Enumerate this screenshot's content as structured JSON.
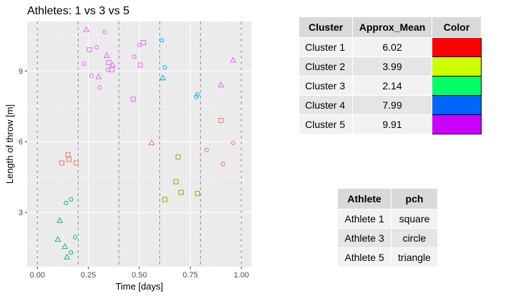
{
  "chart_data": {
    "type": "scatter",
    "title": "Athletes: 1 vs 3 vs 5",
    "xlabel": "Time [days]",
    "ylabel": "Length of throw [m]",
    "xlim": [
      -0.05,
      1.05
    ],
    "ylim": [
      0.7,
      11.1
    ],
    "x_ticks": [
      0.0,
      0.25,
      0.5,
      0.75,
      1.0
    ],
    "x_tick_labels": [
      "0.00",
      "0.25",
      "0.50",
      "0.75",
      "1.00"
    ],
    "y_ticks": [
      3,
      6,
      9
    ],
    "y_tick_labels": [
      "3",
      "6",
      "9"
    ],
    "vlines": [
      0.0,
      0.2,
      0.4,
      0.6,
      0.8,
      1.0
    ],
    "grid": true,
    "legend": "none",
    "points": [
      {
        "x": 0.12,
        "y": 5.1,
        "shape": "square",
        "cluster": 1
      },
      {
        "x": 0.15,
        "y": 5.45,
        "shape": "square",
        "cluster": 1
      },
      {
        "x": 0.155,
        "y": 5.25,
        "shape": "square",
        "cluster": 1
      },
      {
        "x": 0.19,
        "y": 5.1,
        "shape": "square",
        "cluster": 1
      },
      {
        "x": 0.56,
        "y": 5.95,
        "shape": "triangle",
        "cluster": 1
      },
      {
        "x": 0.83,
        "y": 5.65,
        "shape": "circle",
        "cluster": 1
      },
      {
        "x": 0.9,
        "y": 6.9,
        "shape": "square",
        "cluster": 1
      },
      {
        "x": 0.91,
        "y": 5.05,
        "shape": "circle",
        "cluster": 1
      },
      {
        "x": 0.96,
        "y": 5.95,
        "shape": "circle",
        "cluster": 1
      },
      {
        "x": 0.69,
        "y": 5.35,
        "shape": "square",
        "cluster": 2
      },
      {
        "x": 0.68,
        "y": 4.3,
        "shape": "square",
        "cluster": 2
      },
      {
        "x": 0.705,
        "y": 3.85,
        "shape": "square",
        "cluster": 2
      },
      {
        "x": 0.625,
        "y": 3.55,
        "shape": "square",
        "cluster": 2
      },
      {
        "x": 0.785,
        "y": 3.8,
        "shape": "square",
        "cluster": 2
      },
      {
        "x": 0.11,
        "y": 2.65,
        "shape": "triangle",
        "cluster": 3
      },
      {
        "x": 0.1,
        "y": 1.85,
        "shape": "triangle",
        "cluster": 3
      },
      {
        "x": 0.135,
        "y": 1.55,
        "shape": "triangle",
        "cluster": 3
      },
      {
        "x": 0.145,
        "y": 1.1,
        "shape": "triangle",
        "cluster": 3
      },
      {
        "x": 0.165,
        "y": 1.3,
        "shape": "circle",
        "cluster": 3
      },
      {
        "x": 0.185,
        "y": 1.95,
        "shape": "circle",
        "cluster": 3
      },
      {
        "x": 0.14,
        "y": 3.4,
        "shape": "circle",
        "cluster": 3
      },
      {
        "x": 0.165,
        "y": 3.55,
        "shape": "circle",
        "cluster": 3
      },
      {
        "x": 0.61,
        "y": 10.3,
        "shape": "circle",
        "cluster": 4
      },
      {
        "x": 0.625,
        "y": 9.15,
        "shape": "circle",
        "cluster": 4
      },
      {
        "x": 0.615,
        "y": 8.7,
        "shape": "triangle",
        "cluster": 4
      },
      {
        "x": 0.78,
        "y": 7.9,
        "shape": "circle",
        "cluster": 4
      },
      {
        "x": 0.785,
        "y": 8.0,
        "shape": "circle",
        "cluster": 4
      },
      {
        "x": 0.24,
        "y": 10.75,
        "shape": "triangle",
        "cluster": 5
      },
      {
        "x": 0.33,
        "y": 10.65,
        "shape": "circle",
        "cluster": 5
      },
      {
        "x": 0.29,
        "y": 10.0,
        "shape": "circle",
        "cluster": 5
      },
      {
        "x": 0.255,
        "y": 9.9,
        "shape": "square",
        "cluster": 5
      },
      {
        "x": 0.34,
        "y": 9.65,
        "shape": "triangle",
        "cluster": 5
      },
      {
        "x": 0.35,
        "y": 9.35,
        "shape": "square",
        "cluster": 5
      },
      {
        "x": 0.37,
        "y": 9.25,
        "shape": "triangle",
        "cluster": 5
      },
      {
        "x": 0.23,
        "y": 9.3,
        "shape": "circle",
        "cluster": 5
      },
      {
        "x": 0.345,
        "y": 9.05,
        "shape": "circle",
        "cluster": 5
      },
      {
        "x": 0.365,
        "y": 9.05,
        "shape": "square",
        "cluster": 5
      },
      {
        "x": 0.265,
        "y": 8.8,
        "shape": "circle",
        "cluster": 5
      },
      {
        "x": 0.3,
        "y": 8.75,
        "shape": "triangle",
        "cluster": 5
      },
      {
        "x": 0.305,
        "y": 8.3,
        "shape": "circle",
        "cluster": 5
      },
      {
        "x": 0.5,
        "y": 10.1,
        "shape": "circle",
        "cluster": 5
      },
      {
        "x": 0.52,
        "y": 10.2,
        "shape": "square",
        "cluster": 5
      },
      {
        "x": 0.475,
        "y": 9.6,
        "shape": "circle",
        "cluster": 5
      },
      {
        "x": 0.505,
        "y": 9.25,
        "shape": "square",
        "cluster": 5
      },
      {
        "x": 0.47,
        "y": 7.8,
        "shape": "square",
        "cluster": 5
      },
      {
        "x": 0.9,
        "y": 8.4,
        "shape": "triangle",
        "cluster": 5
      },
      {
        "x": 0.96,
        "y": 9.45,
        "shape": "triangle",
        "cluster": 5
      }
    ]
  },
  "cluster_table": {
    "headers": [
      "Cluster",
      "Approx_Mean",
      "Color"
    ],
    "rows": [
      {
        "name": "Cluster 1",
        "mean": "6.02",
        "color": "#FF0000"
      },
      {
        "name": "Cluster 2",
        "mean": "3.99",
        "color": "#CCFF00"
      },
      {
        "name": "Cluster 3",
        "mean": "2.14",
        "color": "#00FF66"
      },
      {
        "name": "Cluster 4",
        "mean": "7.99",
        "color": "#0066FF"
      },
      {
        "name": "Cluster 5",
        "mean": "9.91",
        "color": "#CC00FF"
      }
    ]
  },
  "athlete_table": {
    "headers": [
      "Athlete",
      "pch"
    ],
    "rows": [
      {
        "athlete": "Athlete 1",
        "pch": "square"
      },
      {
        "athlete": "Athlete 3",
        "pch": "circle"
      },
      {
        "athlete": "Athlete 5",
        "pch": "triangle"
      }
    ]
  },
  "colors": {
    "panel_bg": "#EBEBEB",
    "grid_major": "#FFFFFF",
    "vline": "#8C8C8C",
    "cluster_point_colors": {
      "1": "#F8766D",
      "2": "#A3A500",
      "3": "#00BF7D",
      "4": "#00B0F6",
      "5": "#E76BF3"
    }
  }
}
